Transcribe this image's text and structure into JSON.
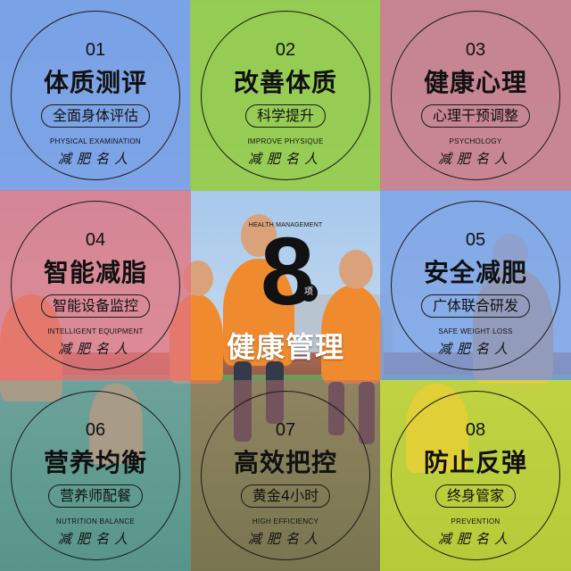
{
  "center": {
    "subtitle_en": "HEALTH MANAGEMENT",
    "number": "8",
    "unit": "项",
    "title": "健康管理"
  },
  "cards": [
    {
      "num": "01",
      "title": "体质测评",
      "pill": "全面身体评估",
      "en": "PHYSICAL EXAMINATION",
      "brand": "减肥名人"
    },
    {
      "num": "02",
      "title": "改善体质",
      "pill": "科学提升",
      "en": "IMPROVE PHYSIQUE",
      "brand": "减肥名人"
    },
    {
      "num": "03",
      "title": "健康心理",
      "pill": "心理干预调整",
      "en": "PSYCHOLOGY",
      "brand": "减肥名人"
    },
    {
      "num": "04",
      "title": "智能减脂",
      "pill": "智能设备监控",
      "en": "INTELLIGENT EQUIPMENT",
      "brand": "减肥名人"
    },
    {
      "num": "05",
      "title": "安全减肥",
      "pill": "广体联合研发",
      "en": "SAFE WEIGHT LOSS",
      "brand": "减肥名人"
    },
    {
      "num": "06",
      "title": "营养均衡",
      "pill": "营养师配餐",
      "en": "NUTRITION BALANCE",
      "brand": "减肥名人"
    },
    {
      "num": "07",
      "title": "高效把控",
      "pill": "黄金4小时",
      "en": "HIGH EFFICIENCY",
      "brand": "减肥名人"
    },
    {
      "num": "08",
      "title": "防止反弹",
      "pill": "终身管家",
      "en": "PREVENTION",
      "brand": "减肥名人"
    }
  ]
}
